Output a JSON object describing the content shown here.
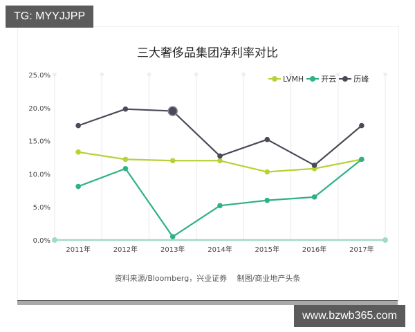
{
  "watermarks": {
    "top_left": "TG: MYYJJPP",
    "bottom_right": "www.bzwb365.com"
  },
  "source_note": "资料来源/Bloomberg，兴业证券　 制图/商业地产头条",
  "legend": [
    {
      "label": "LVMH",
      "color": "#b5d334"
    },
    {
      "label": "开云",
      "color": "#2db185"
    },
    {
      "label": "历峰",
      "color": "#4a4a58"
    }
  ],
  "chart_data": {
    "type": "line",
    "title": "三大奢侈品集团净利率对比",
    "xlabel": "",
    "ylabel": "",
    "categories": [
      "2011年",
      "2012年",
      "2013年",
      "2014年",
      "2015年",
      "2016年",
      "2017年"
    ],
    "y_ticks": [
      "0.0%",
      "5.0%",
      "10.0%",
      "15.0%",
      "20.0%",
      "25.0%"
    ],
    "ylim": [
      0,
      25
    ],
    "grid": "vertical",
    "legend_position": "top-right",
    "series": [
      {
        "name": "LVMH",
        "color": "#b5d334",
        "values": [
          13.3,
          12.2,
          12.0,
          12.0,
          10.3,
          10.8,
          12.2
        ]
      },
      {
        "name": "开云",
        "color": "#2db185",
        "values": [
          8.1,
          10.8,
          0.5,
          5.2,
          6.0,
          6.5,
          12.2
        ]
      },
      {
        "name": "历峰",
        "color": "#4a4a58",
        "values": [
          17.3,
          19.8,
          19.5,
          12.7,
          15.2,
          11.3,
          17.3
        ]
      }
    ]
  }
}
